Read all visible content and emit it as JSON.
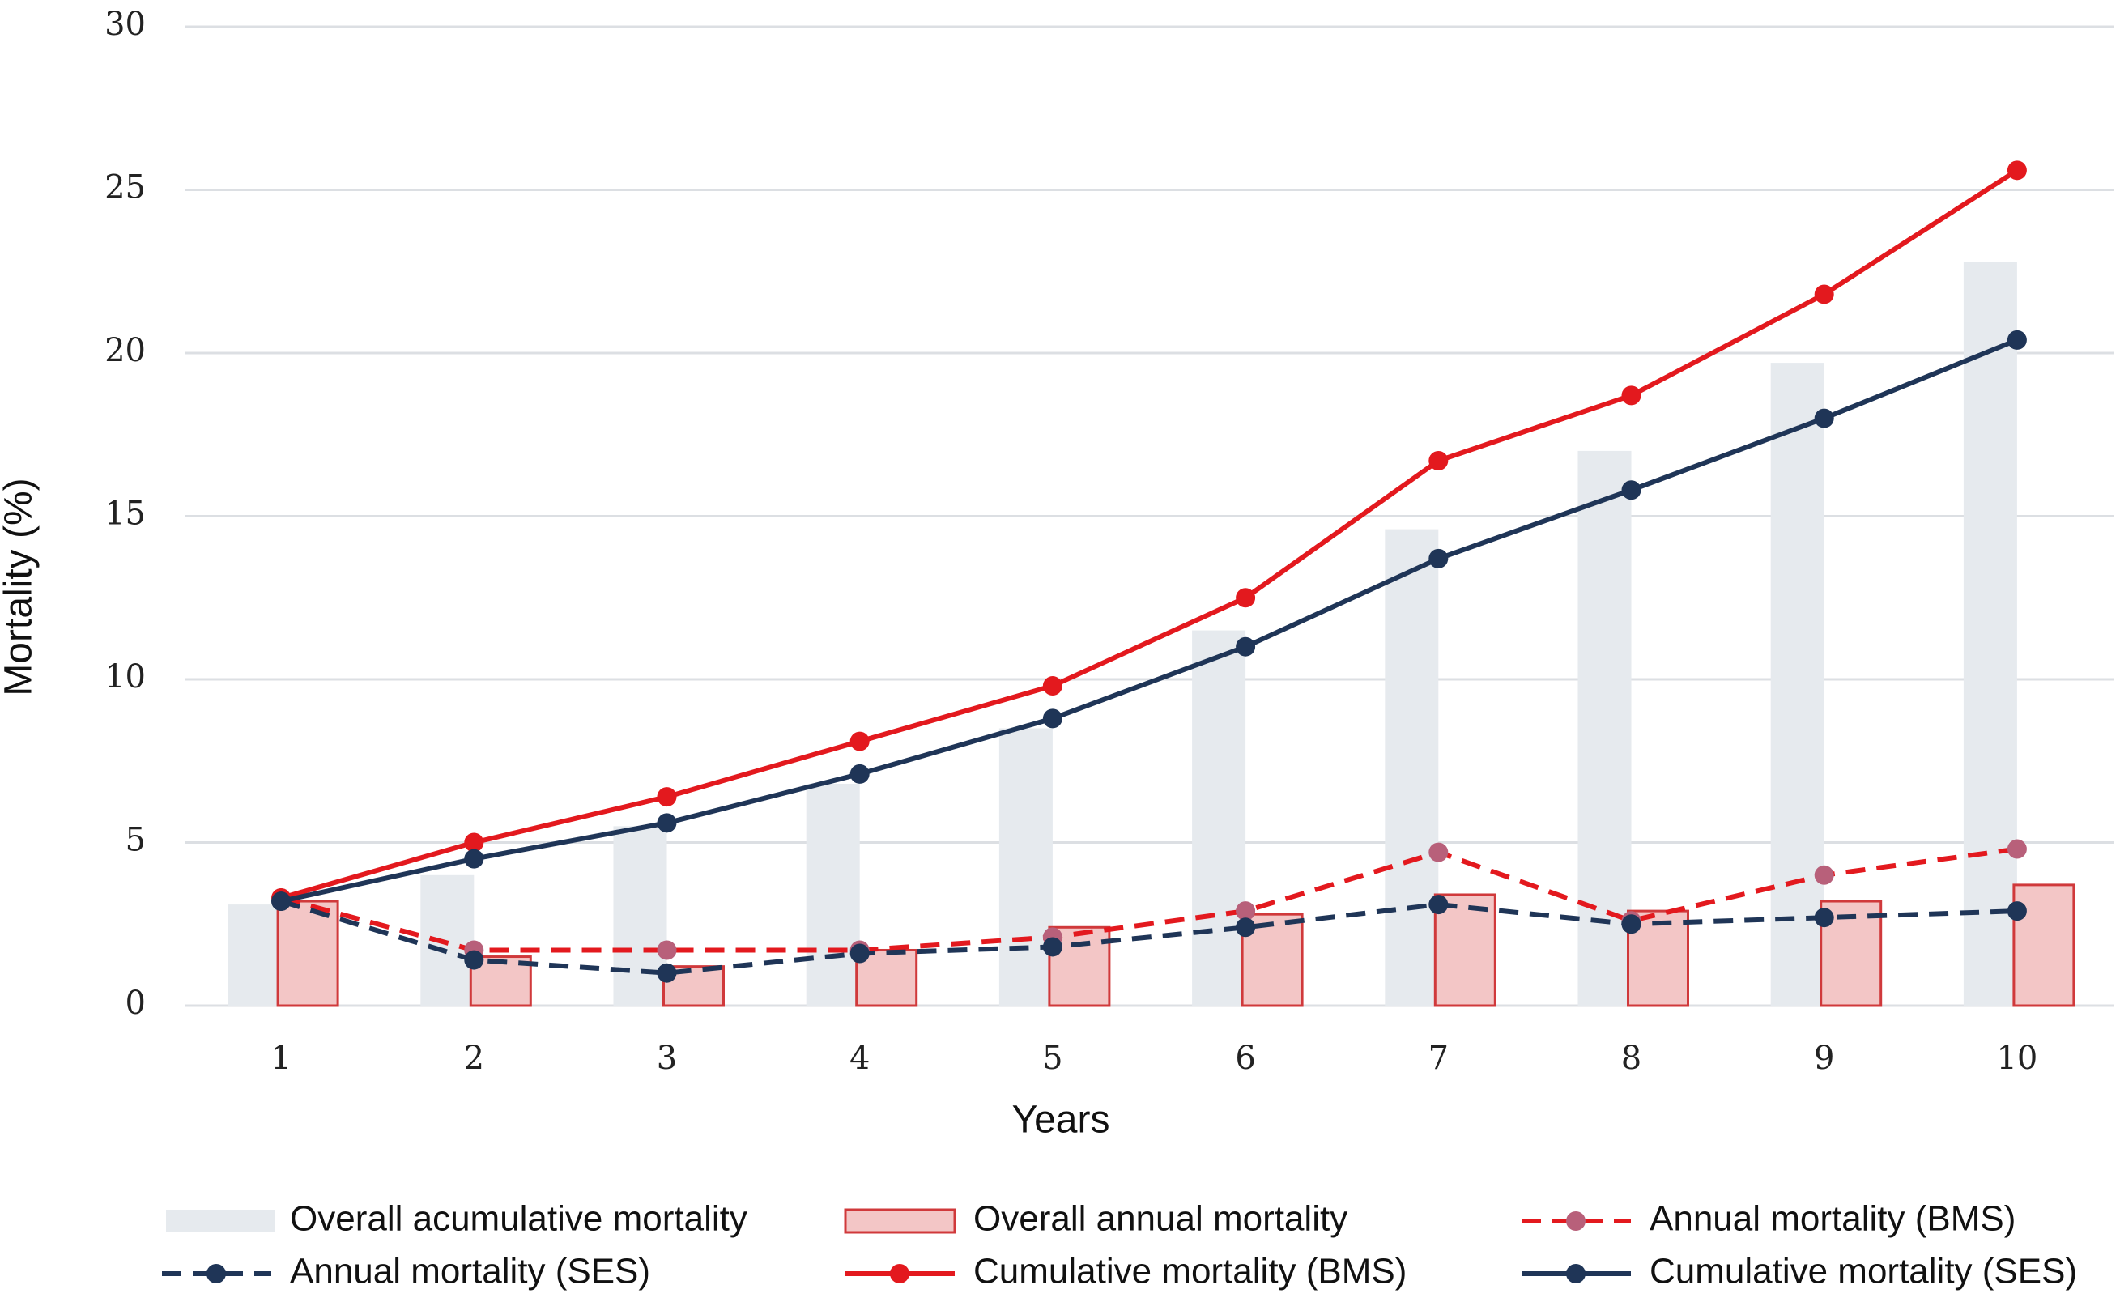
{
  "chart_data": {
    "type": "bar_line",
    "x_label": "Years",
    "y_label": "Mortality (%)",
    "categories": [
      "1",
      "2",
      "3",
      "4",
      "5",
      "6",
      "7",
      "8",
      "9",
      "10"
    ],
    "ylim": [
      0,
      30
    ],
    "yticks": [
      0,
      5,
      10,
      15,
      20,
      25,
      30
    ],
    "grid": true,
    "series": [
      {
        "name": "Overall acumulative mortality",
        "kind": "bar",
        "color": "#e6eaee",
        "values": [
          3.1,
          4.0,
          5.5,
          6.8,
          8.5,
          11.5,
          14.6,
          17.0,
          19.7,
          22.8
        ]
      },
      {
        "name": "Overall annual mortality",
        "kind": "bar",
        "color": "#f3c6c6",
        "edge_color": "#d0393b",
        "values": [
          3.2,
          1.5,
          1.2,
          1.7,
          2.4,
          2.8,
          3.4,
          2.9,
          3.2,
          3.7
        ]
      },
      {
        "name": "Annual mortality (BMS)",
        "kind": "line",
        "dashed": true,
        "color": "#e3191e",
        "values": [
          3.3,
          1.7,
          1.7,
          1.7,
          2.1,
          2.9,
          4.7,
          2.6,
          4.0,
          4.8
        ]
      },
      {
        "name": "Annual mortality (SES)",
        "kind": "line",
        "dashed": true,
        "color": "#1f3557",
        "values": [
          3.2,
          1.4,
          1.0,
          1.6,
          1.8,
          2.4,
          3.1,
          2.5,
          2.7,
          2.9
        ]
      },
      {
        "name": "Cumulative mortality (BMS)",
        "kind": "line",
        "dashed": false,
        "color": "#e3191e",
        "values": [
          3.3,
          5.0,
          6.4,
          8.1,
          9.8,
          12.5,
          16.7,
          18.7,
          21.8,
          25.6
        ]
      },
      {
        "name": "Cumulative mortality (SES)",
        "kind": "line",
        "dashed": false,
        "color": "#1f3557",
        "values": [
          3.2,
          4.5,
          5.6,
          7.1,
          8.8,
          11.0,
          13.7,
          15.8,
          18.0,
          20.4
        ]
      }
    ]
  }
}
